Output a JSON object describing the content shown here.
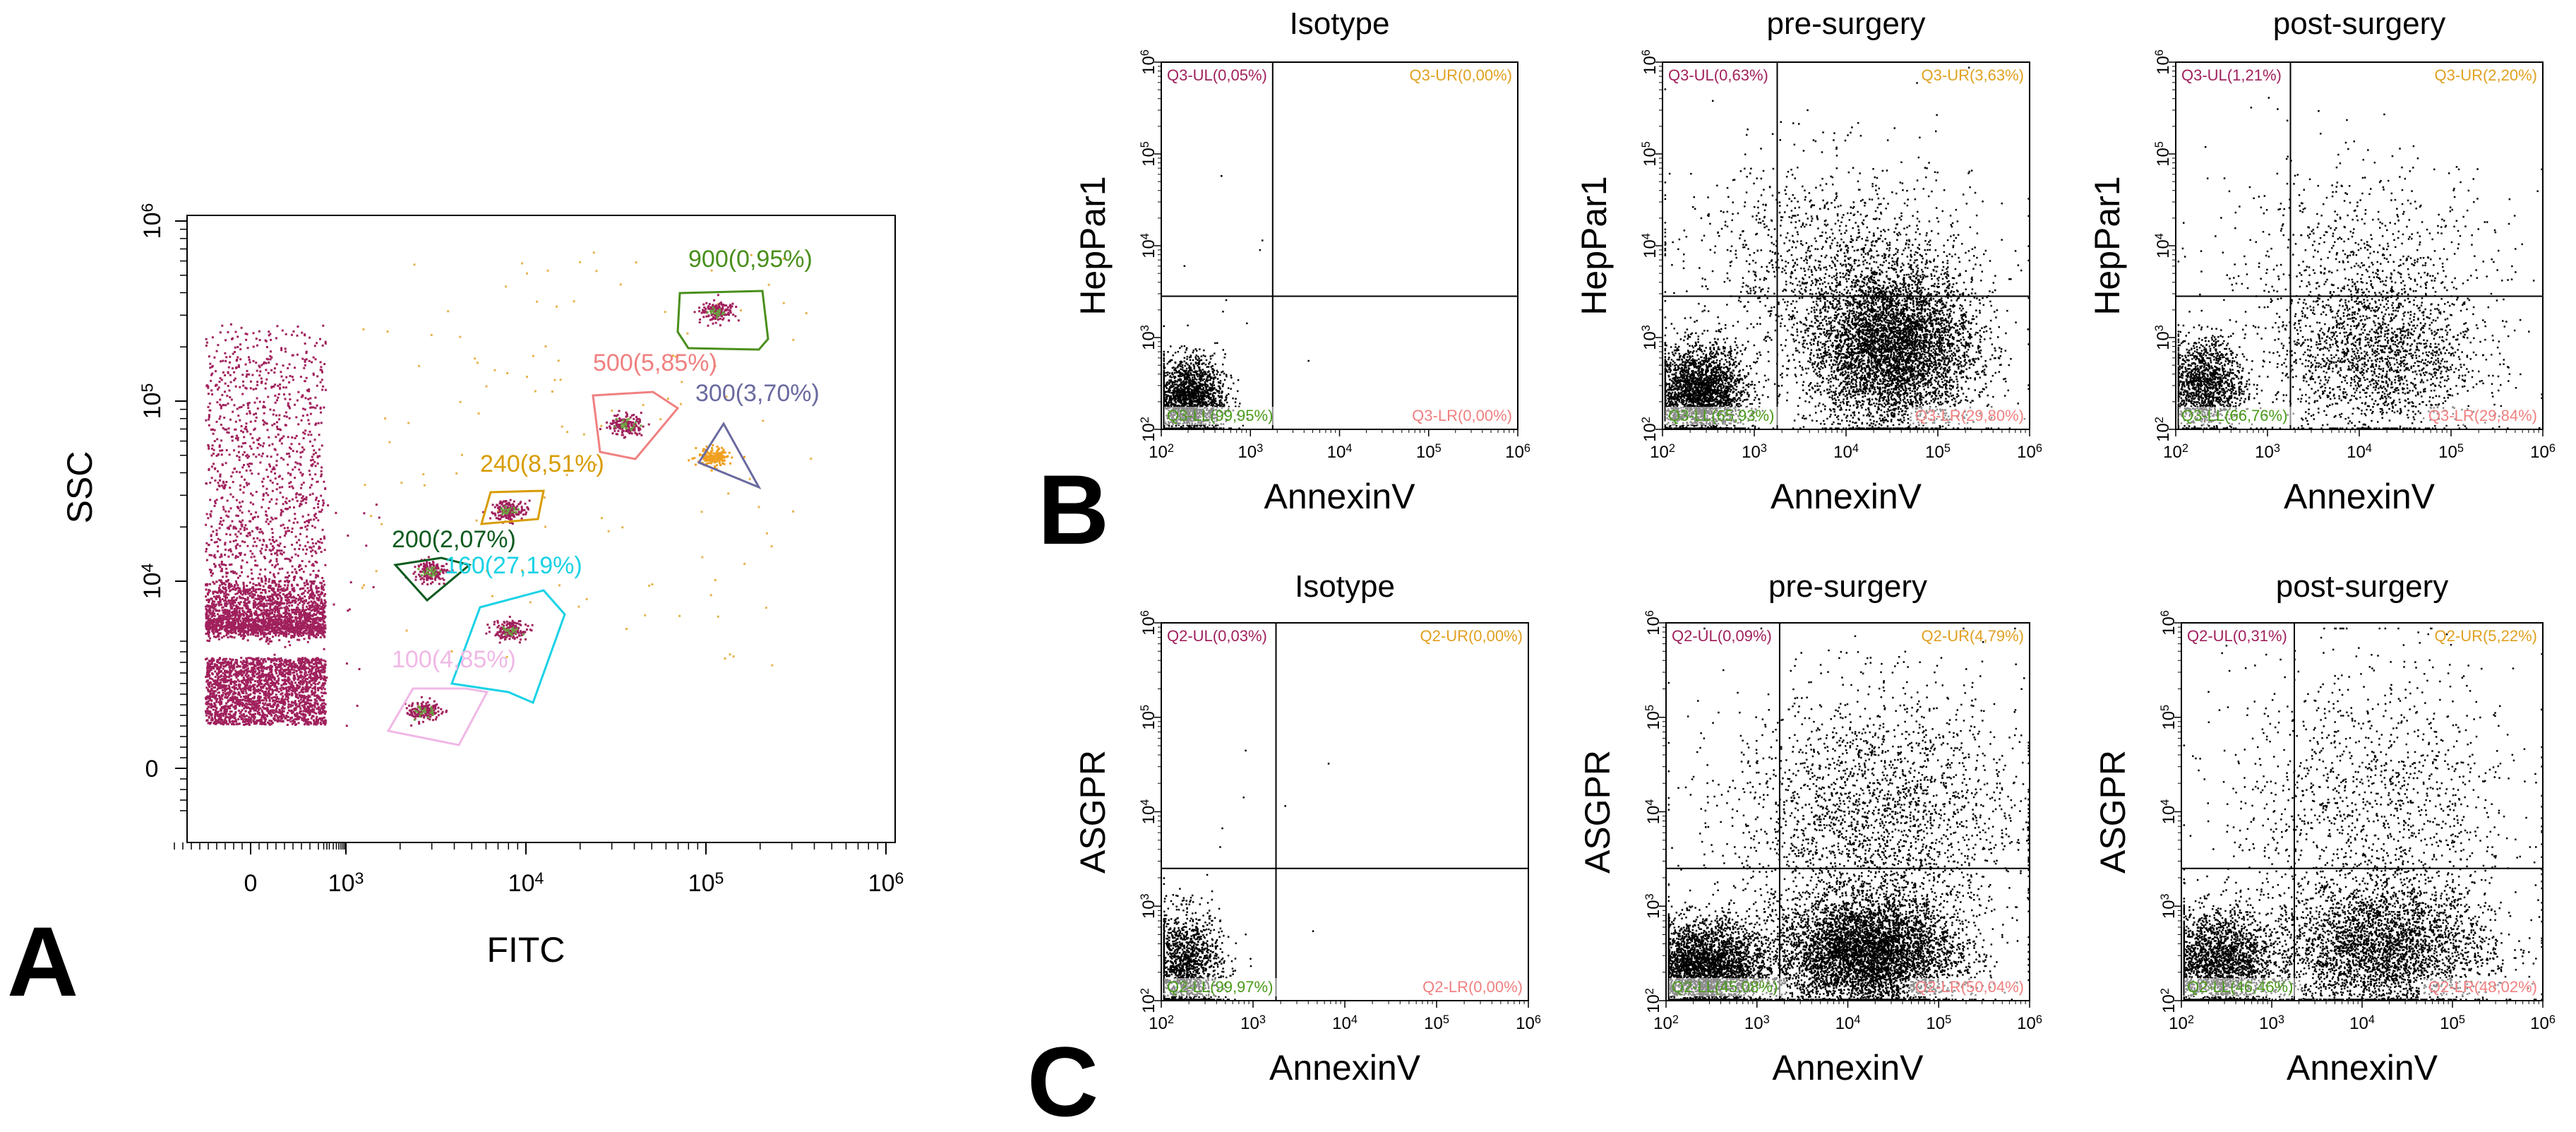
{
  "colors": {
    "dots_main": "#a0205c",
    "dots_flow": "#000000",
    "gate_900": "#4a8f1c",
    "gate_500": "#f08080",
    "gate_300": "#6a6aa0",
    "gate_240": "#d89c00",
    "gate_200": "#0b5a1e",
    "gate_160": "#1ad2e6",
    "gate_100": "#f0b8e6",
    "q_ul": "#a0205c",
    "q_ur": "#e0a020",
    "q_ll": "#4a9a1a",
    "q_lr": "#f08080"
  },
  "panels": {
    "A": "A",
    "B": "B",
    "C": "C"
  },
  "chart_data": [
    {
      "id": "A",
      "type": "scatter",
      "title": "",
      "xlabel": "FITC",
      "ylabel": "SSC",
      "x_ticks": [
        {
          "base": "0",
          "exp": ""
        },
        {
          "base": "10",
          "exp": "3"
        },
        {
          "base": "10",
          "exp": "4"
        },
        {
          "base": "10",
          "exp": "5"
        },
        {
          "base": "10",
          "exp": "6"
        }
      ],
      "y_ticks": [
        {
          "base": "0",
          "exp": ""
        },
        {
          "base": "10",
          "exp": "4"
        },
        {
          "base": "10",
          "exp": "5"
        },
        {
          "base": "10",
          "exp": "6"
        }
      ],
      "xlim": [
        -1,
        6
      ],
      "ylim": [
        -1,
        6
      ],
      "scale": "biexponential",
      "gates": [
        {
          "label": "900(0,95%)",
          "bead_size_nm": 900,
          "percent": 0.95,
          "color_key": "gate_900",
          "center": [
            5.1,
            5.45
          ]
        },
        {
          "label": "500(5,85%)",
          "bead_size_nm": 500,
          "percent": 5.85,
          "color_key": "gate_500",
          "center": [
            4.62,
            4.9
          ]
        },
        {
          "label": "300(3,70%)",
          "bead_size_nm": 300,
          "percent": 3.7,
          "color_key": "gate_300",
          "center": [
            5.05,
            4.62
          ]
        },
        {
          "label": "240(8,51%)",
          "bead_size_nm": 240,
          "percent": 8.51,
          "color_key": "gate_240",
          "center": [
            3.95,
            4.4
          ]
        },
        {
          "label": "200(2,07%)",
          "bead_size_nm": 200,
          "percent": 2.07,
          "color_key": "gate_200",
          "center": [
            3.45,
            4.05
          ]
        },
        {
          "label": "160(27,19%)",
          "bead_size_nm": 160,
          "percent": 27.19,
          "color_key": "gate_160",
          "center": [
            3.95,
            3.75
          ]
        },
        {
          "label": "100(4,85%)",
          "bead_size_nm": 100,
          "percent": 4.85,
          "color_key": "gate_100",
          "center": [
            3.45,
            3.3
          ]
        }
      ]
    },
    {
      "id": "B1",
      "type": "scatter",
      "title": "Isotype",
      "xlabel": "AnnexinV",
      "ylabel": "HepPar1",
      "xlim": [
        2,
        6
      ],
      "ylim": [
        2,
        6
      ],
      "quad_x": 3.25,
      "quad_y": 3.45,
      "quadrants": {
        "UL": "Q3-UL(0,05%)",
        "UR": "Q3-UR(0,00%)",
        "LL": "Q3-LL(99,95%)",
        "LR": "Q3-LR(0,00%)"
      },
      "ticks": [
        "2",
        "3",
        "4",
        "5",
        "6"
      ]
    },
    {
      "id": "B2",
      "type": "scatter",
      "title": "pre-surgery",
      "xlabel": "AnnexinV",
      "ylabel": "HepPar1",
      "xlim": [
        2,
        6
      ],
      "ylim": [
        2,
        6
      ],
      "quad_x": 3.25,
      "quad_y": 3.45,
      "quadrants": {
        "UL": "Q3-UL(0,63%)",
        "UR": "Q3-UR(3,63%)",
        "LL": "Q3-LL(65,93%)",
        "LR": "Q3-LR(29,80%)"
      },
      "ticks": [
        "2",
        "3",
        "4",
        "5",
        "6"
      ]
    },
    {
      "id": "B3",
      "type": "scatter",
      "title": "post-surgery",
      "xlabel": "AnnexinV",
      "ylabel": "HepPar1",
      "xlim": [
        2,
        6
      ],
      "ylim": [
        2,
        6
      ],
      "quad_x": 3.25,
      "quad_y": 3.45,
      "quadrants": {
        "UL": "Q3-UL(1,21%)",
        "UR": "Q3-UR(2,20%)",
        "LL": "Q3-LL(66,76%)",
        "LR": "Q3-LR(29,84%)"
      },
      "ticks": [
        "2",
        "3",
        "4",
        "5",
        "6"
      ]
    },
    {
      "id": "C1",
      "type": "scatter",
      "title": "Isotype",
      "xlabel": "AnnexinV",
      "ylabel": "ASGPR",
      "xlim": [
        2,
        6
      ],
      "ylim": [
        2,
        6
      ],
      "quad_x": 3.25,
      "quad_y": 3.4,
      "quadrants": {
        "UL": "Q2-UL(0,03%)",
        "UR": "Q2-UR(0,00%)",
        "LL": "Q2-LL(99,97%)",
        "LR": "Q2-LR(0,00%)"
      },
      "ticks": [
        "2",
        "3",
        "4",
        "5",
        "6"
      ]
    },
    {
      "id": "C2",
      "type": "scatter",
      "title": "pre-surgery",
      "xlabel": "AnnexinV",
      "ylabel": "ASGPR",
      "xlim": [
        2,
        6
      ],
      "ylim": [
        2,
        6
      ],
      "quad_x": 3.25,
      "quad_y": 3.4,
      "quadrants": {
        "UL": "Q2-UL(0,09%)",
        "UR": "Q2-UR(4,79%)",
        "LL": "Q2-LL(45,08%)",
        "LR": "Q2-LR(50,04%)"
      },
      "ticks": [
        "2",
        "3",
        "4",
        "5",
        "6"
      ]
    },
    {
      "id": "C3",
      "type": "scatter",
      "title": "post-surgery",
      "xlabel": "AnnexinV",
      "ylabel": "ASGPR",
      "xlim": [
        2,
        6
      ],
      "ylim": [
        2,
        6
      ],
      "quad_x": 3.25,
      "quad_y": 3.4,
      "quadrants": {
        "UL": "Q2-UL(0,31%)",
        "UR": "Q2-UR(5,22%)",
        "LL": "Q2-LL(46,46%)",
        "LR": "Q2-LR(48,02%)"
      },
      "ticks": [
        "2",
        "3",
        "4",
        "5",
        "6"
      ]
    }
  ]
}
